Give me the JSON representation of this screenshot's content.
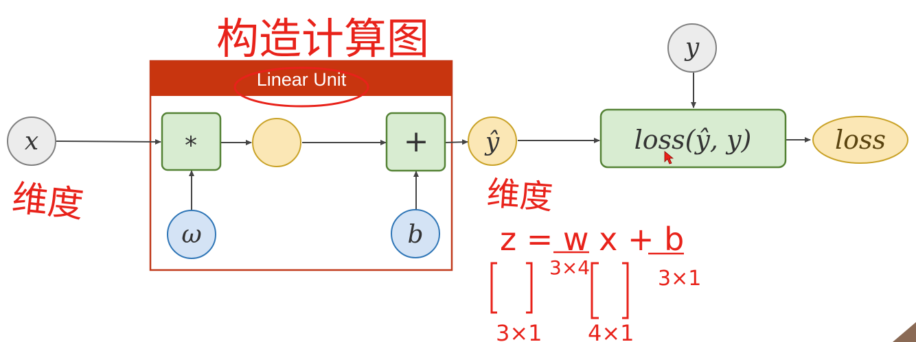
{
  "diagram": {
    "title_handwritten": "构造计算图",
    "unit_header": "Linear Unit",
    "nodes": {
      "x": "x",
      "multiply": "*",
      "omega": "ω",
      "add": "+",
      "b": "b",
      "y_hat": "ŷ",
      "y": "y",
      "loss_fn": "loss(ŷ, y)",
      "loss_out": "loss"
    },
    "annotations": {
      "dim_left": "维度",
      "dim_right": "维度",
      "equation": "z = w x + b",
      "w_shape": "3×4",
      "b_shape": "3×1",
      "z_shape": "3×1",
      "x_shape": "4×1"
    },
    "colors": {
      "unit_border": "#c0391b",
      "unit_header_bg": "#c8350f",
      "op_fill": "#d8ecd1",
      "op_stroke": "#548235",
      "param_fill": "#d4e3f5",
      "param_stroke": "#2e75b6",
      "value_fill": "#fbe7b5",
      "value_stroke": "#c9a227",
      "input_fill": "#ececec",
      "input_stroke": "#7f7f7f",
      "annotation": "#e8221a"
    }
  }
}
